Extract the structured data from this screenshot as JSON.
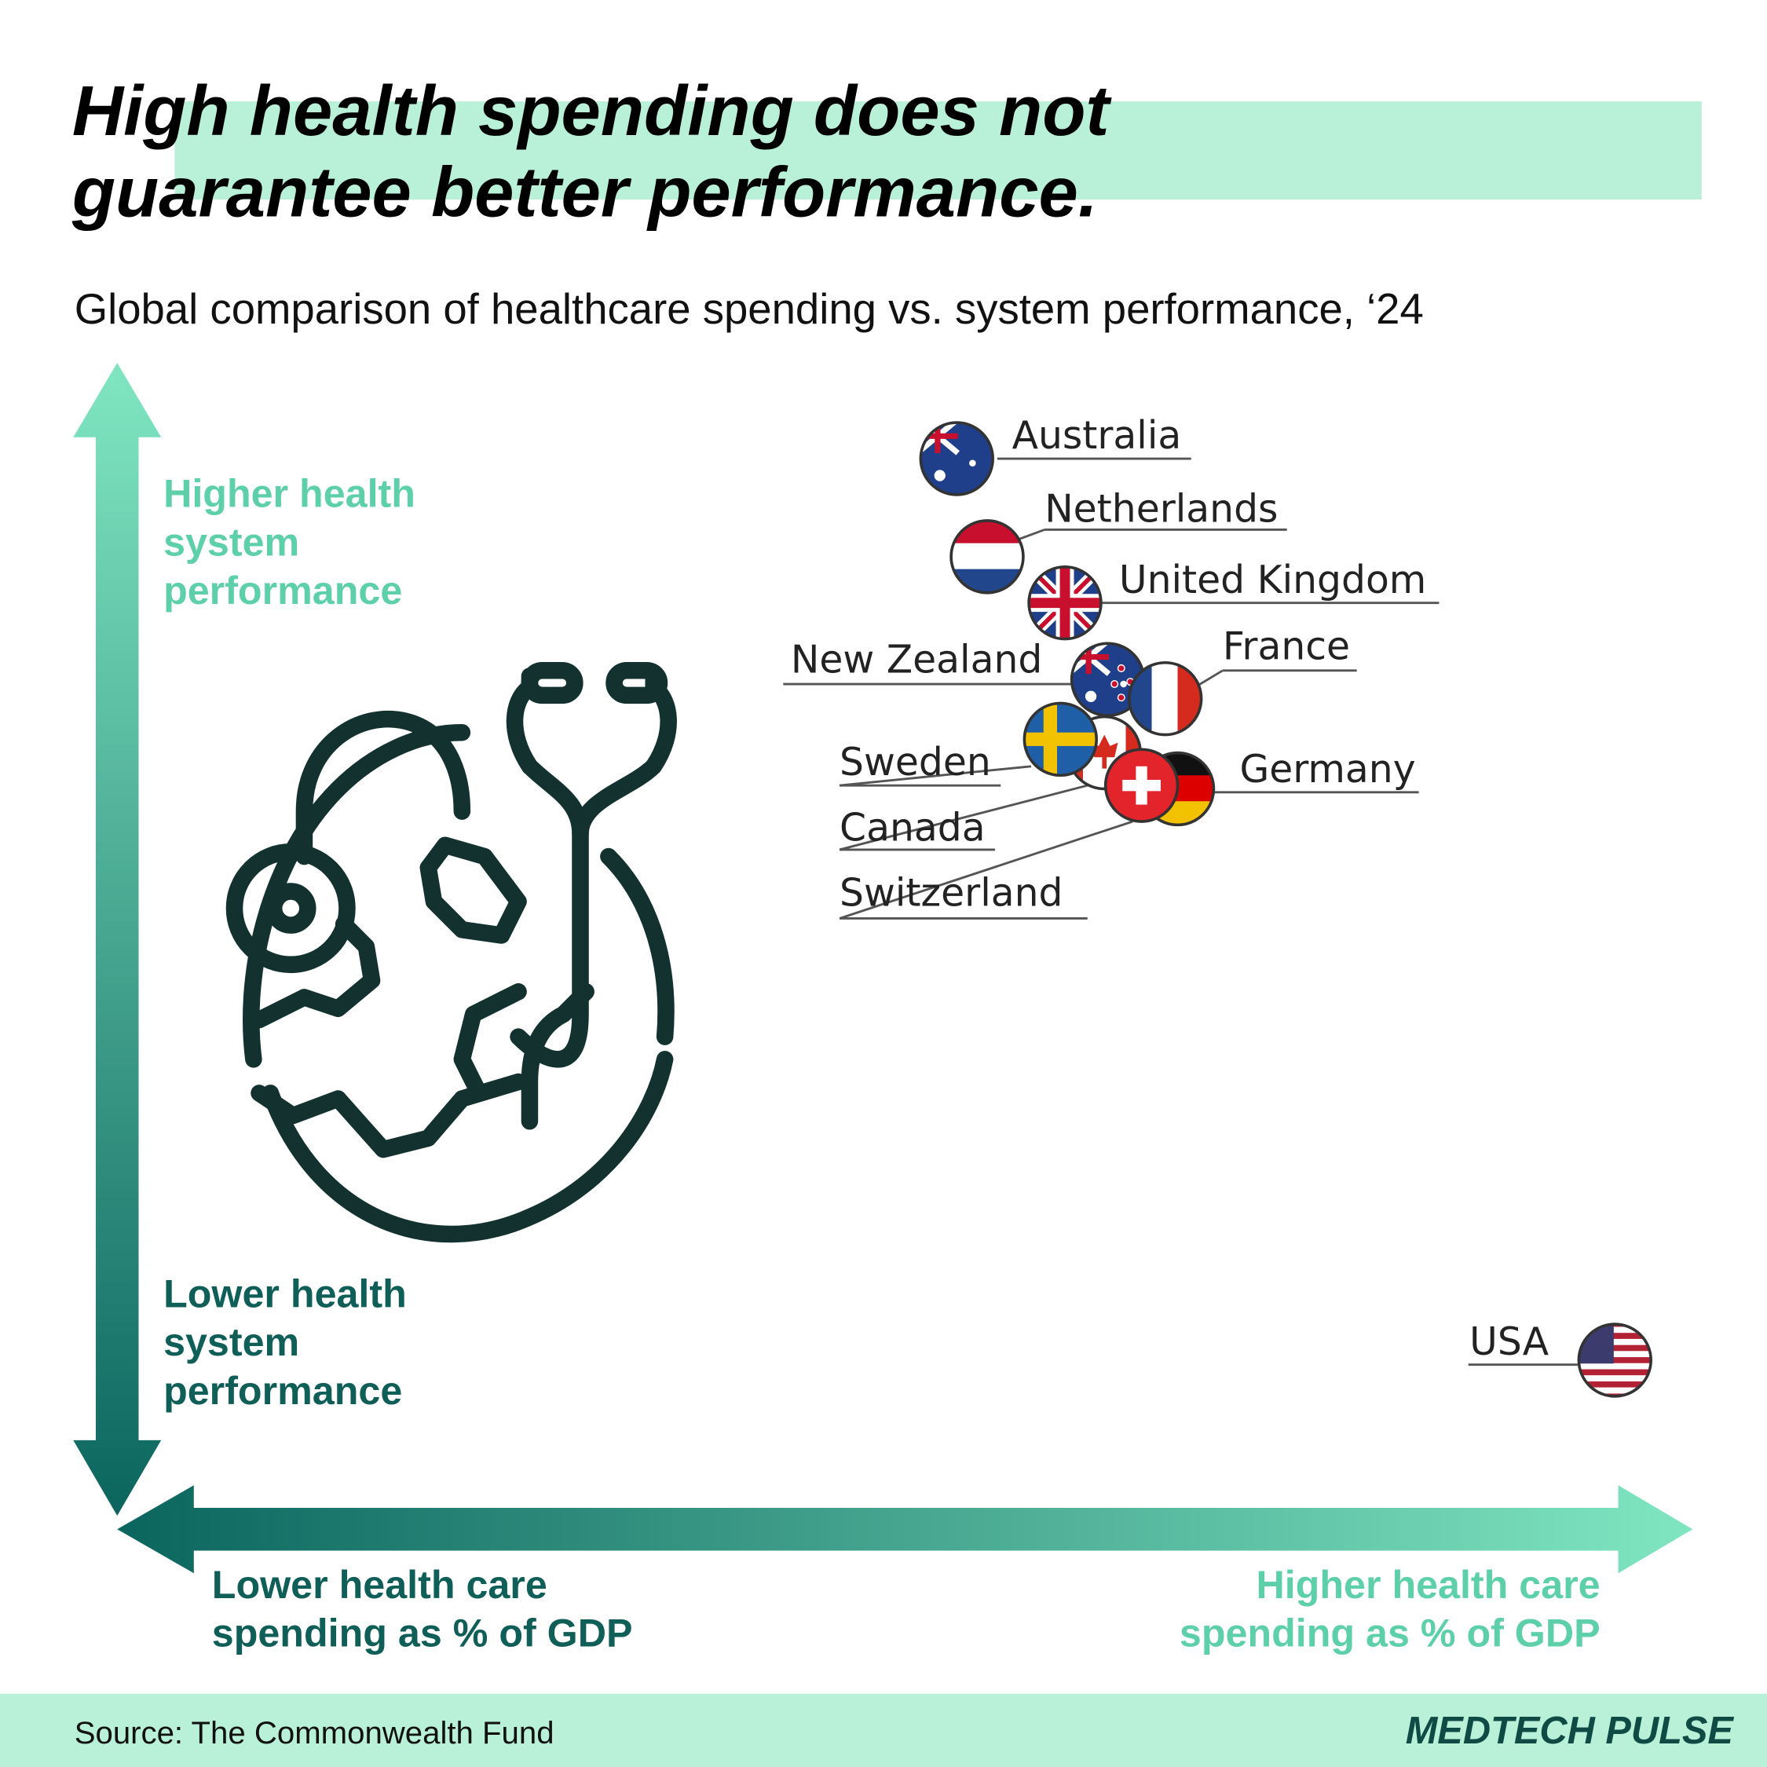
{
  "header": {
    "title": [
      "High health spending does not",
      "guarantee better performance."
    ],
    "subtitle": "Global comparison of healthcare spending vs. system performance, ‘24"
  },
  "y_axis": {
    "top": [
      "Higher health",
      "system",
      "performance"
    ],
    "bottom": [
      "Lower health",
      "system",
      "performance"
    ]
  },
  "x_axis": {
    "left": [
      "Lower health care",
      "spending as % of GDP"
    ],
    "right": [
      "Higher health care",
      "spending as % of GDP"
    ]
  },
  "countries": [
    "Australia",
    "Netherlands",
    "United Kingdom",
    "New Zealand",
    "France",
    "Canada",
    "Sweden",
    "Germany",
    "Switzerland",
    "USA"
  ],
  "footer": {
    "source": "Source: The Commonwealth Fund",
    "brand": "MEDTECH PULSE"
  }
}
